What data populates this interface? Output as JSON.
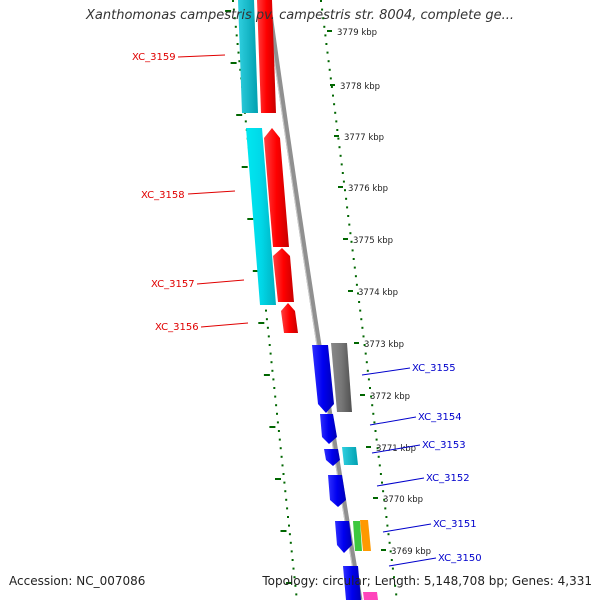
{
  "title": "Xanthomonas campestris pv. campestris str. 8004, complete ge...",
  "footer": {
    "accession": "Accession: NC_007086",
    "summary": "Topology: circular; Length: 5,148,708 bp; Genes: 4,331"
  },
  "colors": {
    "forward_label": "#e00000",
    "reverse_label": "#0000cc",
    "tick": "#006600",
    "backbone": "#808080"
  },
  "kbp_ticks": [
    "3779 kbp",
    "3778 kbp",
    "3777 kbp",
    "3776 kbp",
    "3775 kbp",
    "3774 kbp",
    "3773 kbp",
    "3772 kbp",
    "3771 kbp",
    "3770 kbp",
    "3769 kbp"
  ],
  "gene_labels": [
    {
      "id": "XC_3159",
      "strand": "forward"
    },
    {
      "id": "XC_3158",
      "strand": "forward"
    },
    {
      "id": "XC_3157",
      "strand": "forward"
    },
    {
      "id": "XC_3156",
      "strand": "forward"
    },
    {
      "id": "XC_3155",
      "strand": "reverse"
    },
    {
      "id": "XC_3154",
      "strand": "reverse"
    },
    {
      "id": "XC_3153",
      "strand": "reverse"
    },
    {
      "id": "XC_3152",
      "strand": "reverse"
    },
    {
      "id": "XC_3151",
      "strand": "reverse"
    },
    {
      "id": "XC_3150",
      "strand": "reverse"
    }
  ]
}
